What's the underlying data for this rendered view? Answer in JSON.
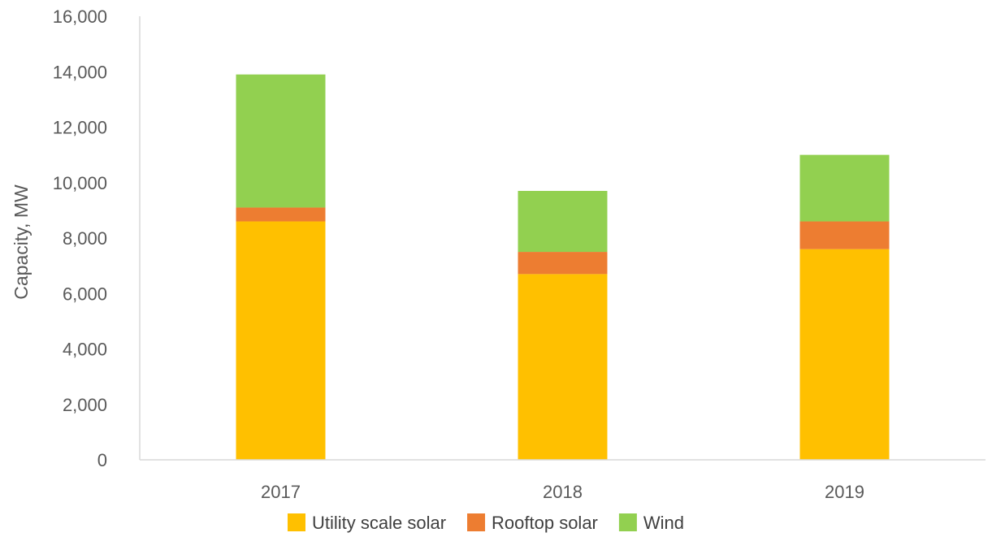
{
  "chart_data": {
    "type": "bar",
    "stacked": true,
    "title": "",
    "xlabel": "",
    "ylabel": "Capacity, MW",
    "ylim": [
      0,
      16000
    ],
    "yticks": [
      0,
      2000,
      4000,
      6000,
      8000,
      10000,
      12000,
      14000,
      16000
    ],
    "ytick_labels": [
      "0",
      "2,000",
      "4,000",
      "6,000",
      "8,000",
      "10,000",
      "12,000",
      "14,000",
      "16,000"
    ],
    "grid": false,
    "legend_position": "bottom",
    "categories": [
      "2017",
      "2018",
      "2019"
    ],
    "series": [
      {
        "name": "Utility scale solar",
        "color": "#FFC000",
        "values": [
          8600,
          6700,
          7600
        ]
      },
      {
        "name": "Rooftop solar",
        "color": "#ED7D31",
        "values": [
          500,
          800,
          1000
        ]
      },
      {
        "name": "Wind",
        "color": "#92D050",
        "values": [
          4800,
          2200,
          2400
        ]
      }
    ]
  }
}
